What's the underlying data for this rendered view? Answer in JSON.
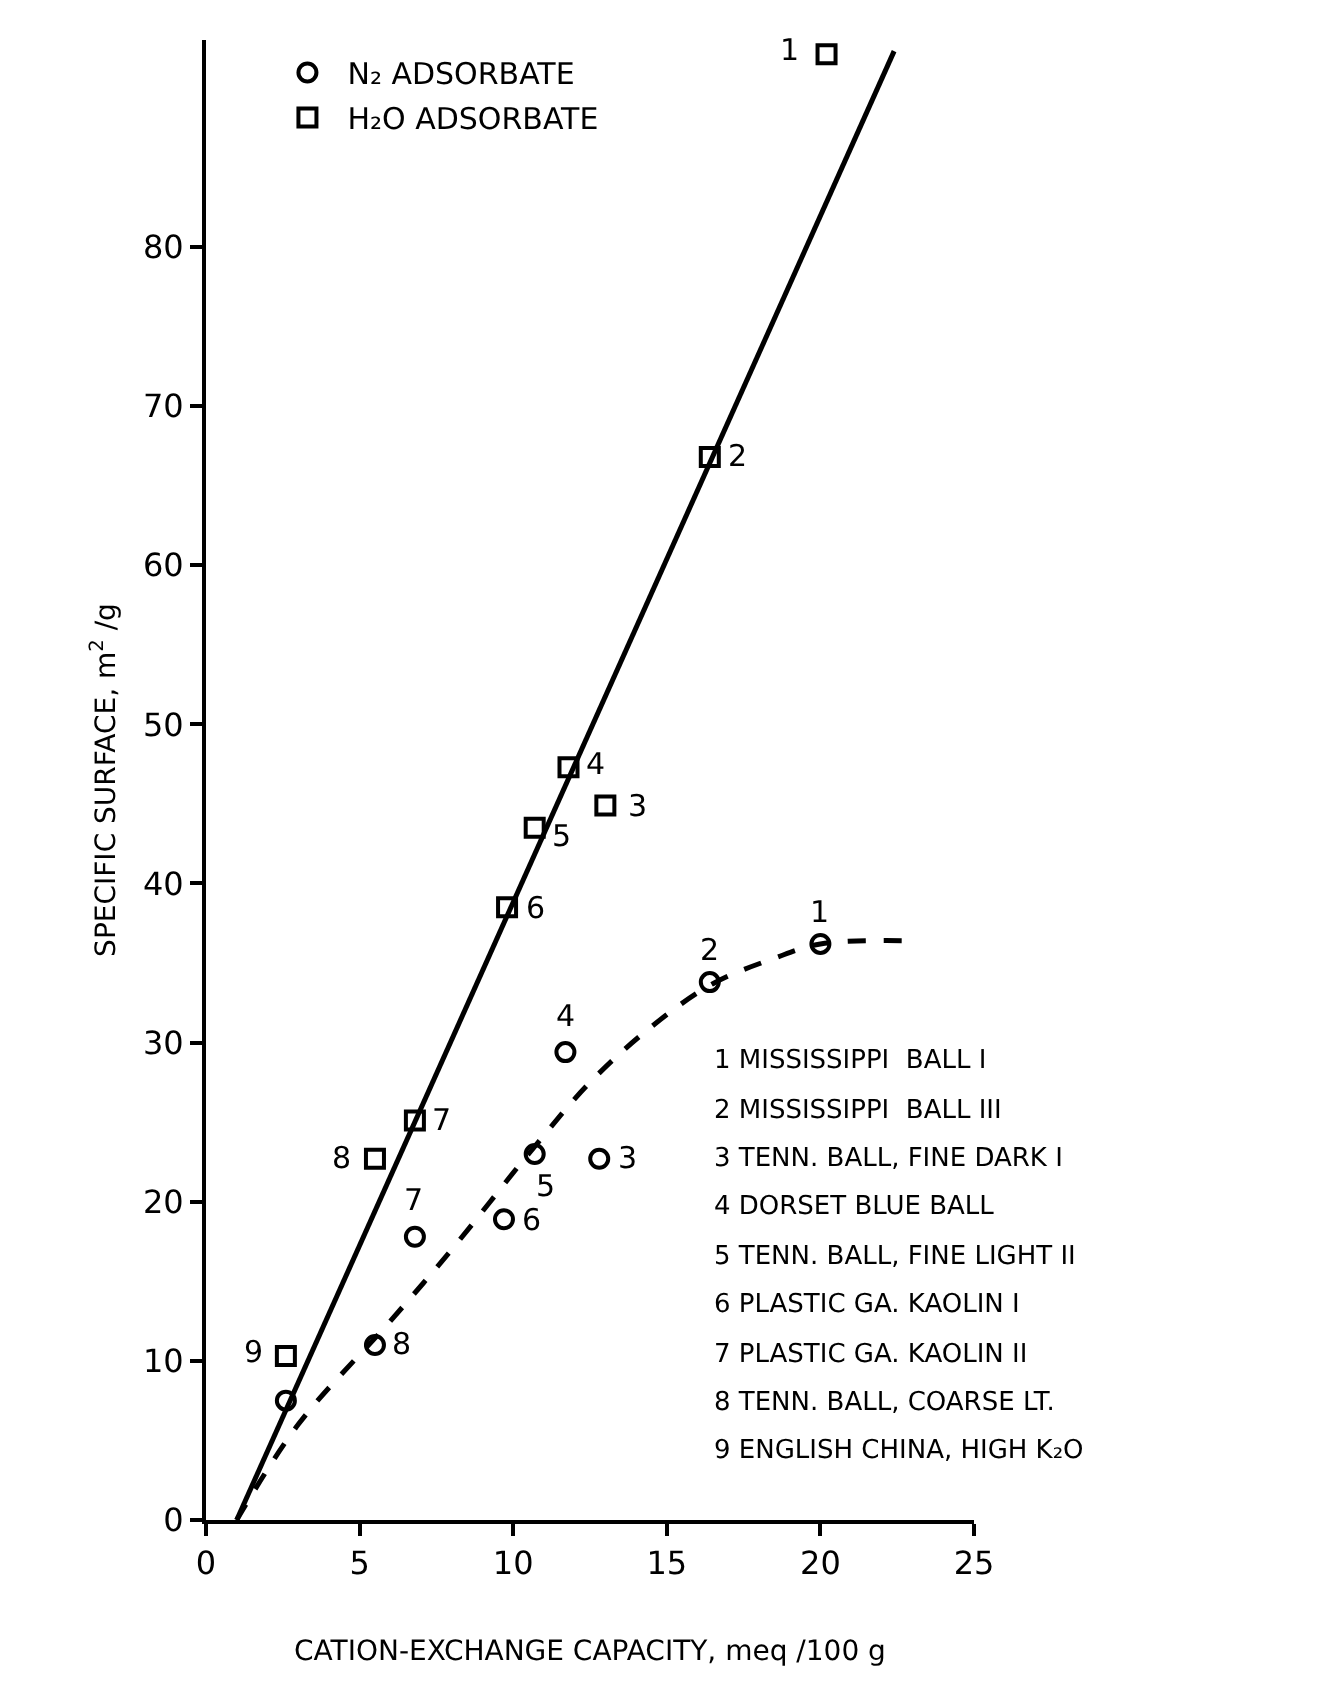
{
  "chart_data": {
    "type": "scatter",
    "xlabel": "CATION-EXCHANGE CAPACITY, meq /100 g",
    "ylabel": "SPECIFIC SURFACE, m$^{2}$ /g",
    "xlim": [
      0,
      25
    ],
    "xticks": [
      0,
      5,
      10,
      15,
      20,
      25
    ],
    "ylim": [
      0,
      93
    ],
    "yticks": [
      0,
      10,
      20,
      30,
      40,
      50,
      60,
      70,
      80
    ],
    "legend": "top left",
    "series": [
      {
        "name": "N₂ ADSORBATE",
        "type": "scatter",
        "marker": "circle",
        "color": "#000000",
        "x": [
          20.0,
          16.4,
          12.8,
          11.7,
          10.7,
          9.7,
          6.8,
          5.5,
          2.6
        ],
        "values": [
          36.2,
          33.8,
          22.7,
          29.4,
          23.0,
          18.9,
          17.8,
          11.0,
          7.5
        ]
      },
      {
        "name": "H₂O ADSORBATE",
        "type": "scatter",
        "marker": "square",
        "color": "#000000",
        "x": [
          20.2,
          16.4,
          13.0,
          11.8,
          10.7,
          9.8,
          6.8,
          5.5,
          2.6
        ],
        "values": [
          92.1,
          66.8,
          44.9,
          47.3,
          43.5,
          38.5,
          25.1,
          22.7,
          10.3
        ]
      },
      {
        "type": "line",
        "line_style": "dashed",
        "color": "#000000",
        "x": [
          1,
          3,
          6,
          8,
          10.5,
          12.5,
          14.5,
          16.5,
          18.5,
          20,
          22.9
        ],
        "values": [
          0,
          6,
          12.5,
          17,
          23,
          27.5,
          31,
          33.7,
          35.3,
          36.2,
          36.4
        ]
      },
      {
        "type": "line",
        "line_style": "solid",
        "color": "#000000",
        "x": [
          1,
          22.4
        ],
        "values": [
          0,
          92.3
        ]
      }
    ],
    "annotations": [
      "1 MISSISSIPPI  BALL I",
      "2 MISSISSIPPI  BALL III",
      "3 TENN. BALL, FINE DARK I",
      "4 DORSET BLUE BALL",
      "5 TENN. BALL, FINE LIGHT II",
      "6 PLASTIC GA. KAOLIN I",
      "7 PLASTIC GA. KAOLIN II",
      "8 TENN. BALL, COARSE LT.",
      "9 ENGLISH CHINA, HIGH K₂O",
      {
        "text": "1",
        "x": 20.0,
        "y": 36.2
      },
      {
        "text": "2",
        "x": 16.4,
        "y": 33.8
      },
      {
        "text": "3",
        "x": 12.8,
        "y": 22.7
      },
      {
        "text": "4",
        "x": 11.7,
        "y": 29.4
      },
      {
        "text": "5",
        "x": 10.7,
        "y": 23.0
      },
      {
        "text": "6",
        "x": 9.7,
        "y": 18.9
      },
      {
        "text": "7",
        "x": 6.8,
        "y": 17.8
      },
      {
        "text": "8",
        "x": 5.5,
        "y": 11.0
      },
      {
        "text": "1",
        "x": 20.2,
        "y": 92.1
      },
      {
        "text": "2",
        "x": 16.4,
        "y": 66.8
      },
      {
        "text": "3",
        "x": 13.0,
        "y": 44.9
      },
      {
        "text": "4",
        "x": 11.8,
        "y": 47.3
      },
      {
        "text": "5",
        "x": 10.7,
        "y": 43.5
      },
      {
        "text": "6",
        "x": 9.8,
        "y": 38.5
      },
      {
        "text": "7",
        "x": 6.8,
        "y": 25.1
      },
      {
        "text": "8",
        "x": 5.5,
        "y": 22.7
      },
      {
        "text": "9",
        "x": 2.6,
        "y": 10.3
      }
    ]
  }
}
